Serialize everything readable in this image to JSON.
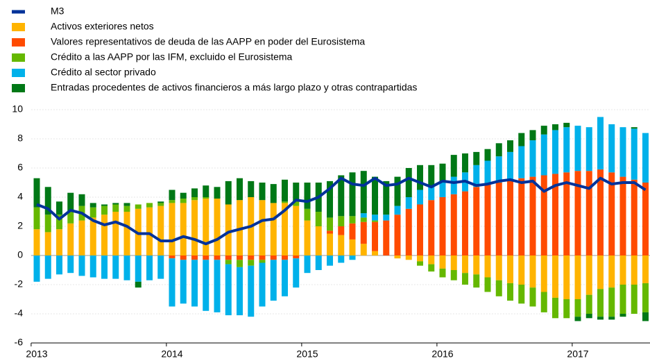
{
  "chart_data": {
    "type": "stacked-bar-line",
    "categories": [
      "2013",
      null,
      null,
      null,
      null,
      null,
      null,
      null,
      null,
      null,
      null,
      null,
      "2014",
      null,
      null,
      null,
      null,
      null,
      null,
      null,
      null,
      null,
      null,
      null,
      "2015",
      null,
      null,
      null,
      null,
      null,
      null,
      null,
      null,
      null,
      null,
      null,
      "2016",
      null,
      null,
      null,
      null,
      null,
      null,
      null,
      null,
      null,
      null,
      null,
      "2017",
      null,
      null,
      null,
      null,
      null,
      null
    ],
    "line": {
      "name": "M3",
      "color": "#003299",
      "values": [
        3.5,
        3.2,
        2.5,
        3.1,
        2.9,
        2.4,
        2.1,
        2.3,
        2.0,
        1.5,
        1.5,
        1.0,
        1.0,
        1.3,
        1.1,
        0.8,
        1.1,
        1.6,
        1.8,
        2.0,
        2.4,
        2.5,
        3.1,
        3.8,
        3.7,
        4.0,
        4.6,
        5.3,
        4.9,
        4.8,
        5.3,
        4.8,
        4.9,
        5.3,
        5.0,
        4.7,
        5.1,
        5.0,
        5.1,
        4.8,
        4.9,
        5.1,
        5.2,
        5.0,
        5.1,
        4.4,
        4.8,
        5.0,
        4.8,
        4.6,
        5.3,
        4.9,
        5.0,
        5.0,
        4.5
      ]
    },
    "series": [
      {
        "name": "Activos exteriores netos",
        "color": "#ffb400",
        "values": [
          1.8,
          1.6,
          1.8,
          2.2,
          2.4,
          2.6,
          2.8,
          3.0,
          3.0,
          3.2,
          3.3,
          3.4,
          3.6,
          3.6,
          3.8,
          3.9,
          3.9,
          3.5,
          3.8,
          4.0,
          3.8,
          3.6,
          3.6,
          3.4,
          2.4,
          2.0,
          1.5,
          1.4,
          1.1,
          0.8,
          0.3,
          0.0,
          -0.2,
          -0.3,
          -0.4,
          -0.6,
          -0.9,
          -1.0,
          -1.2,
          -1.3,
          -1.5,
          -1.7,
          -1.9,
          -2.0,
          -2.2,
          -2.5,
          -2.9,
          -3.0,
          -3.0,
          -2.7,
          -2.3,
          -2.2,
          -2.0,
          -2.0,
          -1.9
        ]
      },
      {
        "name": "Valores representativos de deuda de las AAPP en poder del Eurosistema",
        "color": "#ff4b00",
        "values": [
          0,
          0,
          0,
          0,
          0,
          0,
          0,
          0,
          0,
          0,
          0,
          0,
          -0.2,
          -0.3,
          -0.3,
          -0.3,
          -0.3,
          -0.3,
          -0.3,
          -0.3,
          -0.3,
          -0.3,
          -0.3,
          -0.2,
          0.0,
          0.0,
          0.2,
          0.6,
          1.1,
          1.5,
          2.0,
          2.4,
          2.8,
          3.2,
          3.5,
          3.8,
          4.0,
          4.2,
          4.4,
          4.7,
          4.9,
          5.0,
          5.1,
          5.3,
          5.4,
          5.5,
          5.6,
          5.7,
          5.8,
          5.8,
          5.9,
          5.7,
          5.4,
          5.2,
          5.0
        ]
      },
      {
        "name": "Crédito a las AAPP por las IFM, excluido el Eurosistema",
        "color": "#65b800",
        "values": [
          1.5,
          1.2,
          1.0,
          0.8,
          1.0,
          0.7,
          0.6,
          0.5,
          0.4,
          0.3,
          0.3,
          0.2,
          0.2,
          0.3,
          0.2,
          0.1,
          0.0,
          -0.3,
          -0.5,
          -0.4,
          -0.2,
          0.0,
          0.1,
          0.3,
          0.8,
          1.0,
          0.9,
          0.7,
          0.5,
          0.3,
          0.1,
          0,
          0,
          0,
          -0.3,
          -0.5,
          -0.6,
          -0.7,
          -0.8,
          -0.9,
          -1.0,
          -1.1,
          -1.2,
          -1.3,
          -1.3,
          -1.4,
          -1.4,
          -1.3,
          -1.2,
          -1.3,
          -1.9,
          -2.0,
          -2.0,
          -2.0,
          -2.0
        ]
      },
      {
        "name": "Crédito al sector privado",
        "color": "#00b1ea",
        "values": [
          -1.8,
          -1.6,
          -1.3,
          -1.2,
          -1.4,
          -1.5,
          -1.6,
          -1.6,
          -1.7,
          -1.8,
          -1.7,
          -1.6,
          -3.3,
          -3.0,
          -3.2,
          -3.5,
          -3.6,
          -3.5,
          -3.3,
          -3.5,
          -3.0,
          -2.8,
          -2.5,
          -2.0,
          -1.2,
          -1.0,
          -0.7,
          -0.5,
          -0.3,
          0.3,
          0.4,
          0.4,
          0.6,
          0.8,
          1.0,
          0.9,
          1.1,
          1.2,
          1.3,
          1.5,
          1.6,
          1.8,
          2.0,
          2.2,
          2.5,
          2.8,
          3.0,
          3.1,
          3.1,
          3.0,
          3.6,
          3.3,
          3.4,
          3.5,
          3.4
        ]
      },
      {
        "name": "Entradas procedentes de activos financieros a más largo plazo y otras contrapartidas",
        "color": "#007816",
        "values": [
          2.0,
          1.9,
          0.9,
          1.3,
          0.8,
          0.3,
          0.1,
          0.1,
          0.2,
          -0.4,
          0.0,
          0.1,
          0.7,
          0.4,
          0.6,
          0.8,
          0.8,
          1.6,
          1.5,
          1.1,
          1.2,
          1.3,
          1.5,
          1.3,
          1.8,
          2.0,
          2.5,
          2.8,
          3.0,
          2.9,
          2.6,
          2.3,
          2.0,
          2.0,
          1.7,
          1.5,
          1.2,
          1.5,
          1.3,
          0.9,
          0.8,
          0.9,
          0.8,
          0.9,
          0.7,
          0.6,
          0.4,
          0.3,
          -0.3,
          -0.3,
          -0.2,
          -0.2,
          -0.2,
          0.1,
          -0.6
        ]
      }
    ],
    "ylim": [
      -6,
      10
    ],
    "yticks": [
      -6,
      -4,
      -2,
      0,
      2,
      4,
      6,
      8,
      10
    ],
    "grid": true
  }
}
